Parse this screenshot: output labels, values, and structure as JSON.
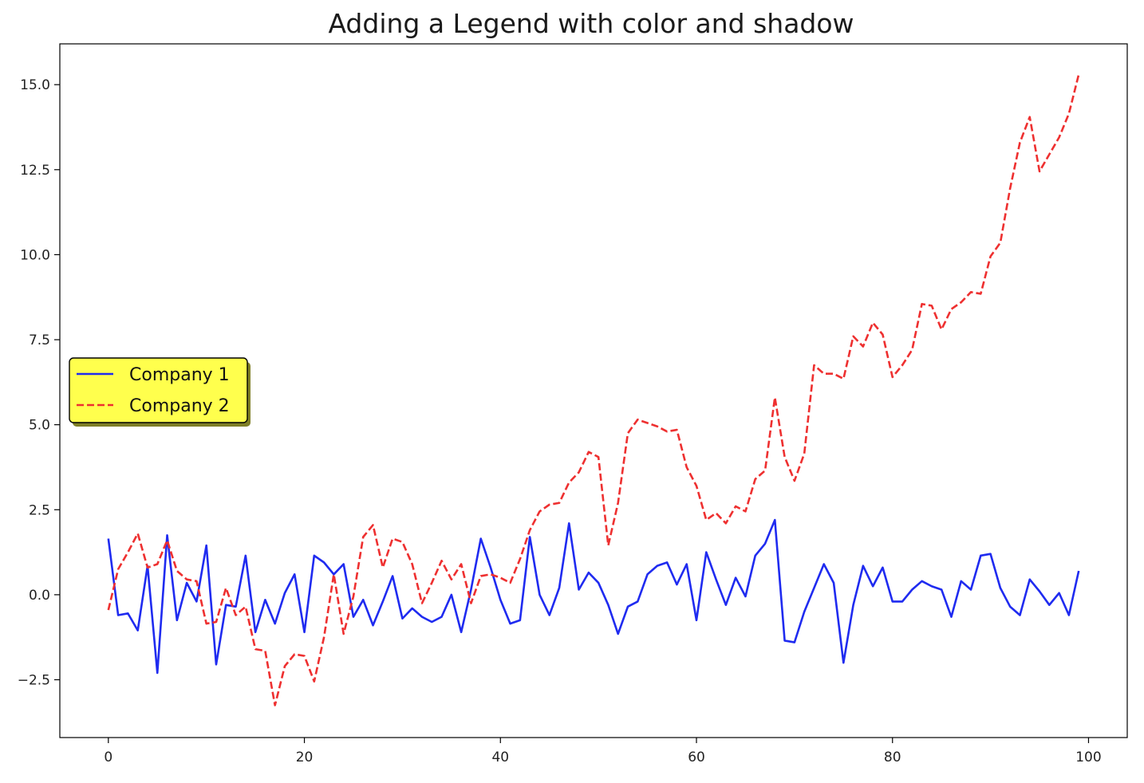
{
  "chart_data": {
    "type": "line",
    "title": "Adding a Legend with color and shadow",
    "xlabel": "",
    "ylabel": "",
    "xlim": [
      -4.95,
      103.95
    ],
    "ylim": [
      -4.2,
      16.2
    ],
    "xticks": [
      0,
      20,
      40,
      60,
      80,
      100
    ],
    "xtick_labels": [
      "0",
      "20",
      "40",
      "60",
      "80",
      "100"
    ],
    "yticks": [
      -2.5,
      0.0,
      2.5,
      5.0,
      7.5,
      10.0,
      12.5,
      15.0
    ],
    "ytick_labels": [
      "−2.5",
      "0.0",
      "2.5",
      "5.0",
      "7.5",
      "10.0",
      "12.5",
      "15.0"
    ],
    "grid": false,
    "legend": {
      "placement": "center-left",
      "facecolor": "#ffff4d",
      "edgecolor": "#000000",
      "shadow": true
    },
    "x": [
      0,
      1,
      2,
      3,
      4,
      5,
      6,
      7,
      8,
      9,
      10,
      11,
      12,
      13,
      14,
      15,
      16,
      17,
      18,
      19,
      20,
      21,
      22,
      23,
      24,
      25,
      26,
      27,
      28,
      29,
      30,
      31,
      32,
      33,
      34,
      35,
      36,
      37,
      38,
      39,
      40,
      41,
      42,
      43,
      44,
      45,
      46,
      47,
      48,
      49,
      50,
      51,
      52,
      53,
      54,
      55,
      56,
      57,
      58,
      59,
      60,
      61,
      62,
      63,
      64,
      65,
      66,
      67,
      68,
      69,
      70,
      71,
      72,
      73,
      74,
      75,
      76,
      77,
      78,
      79,
      80,
      81,
      82,
      83,
      84,
      85,
      86,
      87,
      88,
      89,
      90,
      91,
      92,
      93,
      94,
      95,
      96,
      97,
      98,
      99
    ],
    "series": [
      {
        "name": "Company 1",
        "color": "#1f2bf0",
        "linestyle": "solid",
        "values": [
          1.65,
          -0.6,
          -0.55,
          -1.05,
          0.85,
          -2.3,
          1.75,
          -0.75,
          0.35,
          -0.2,
          1.45,
          -2.05,
          -0.3,
          -0.35,
          1.15,
          -1.1,
          -0.15,
          -0.85,
          0.05,
          0.6,
          -1.1,
          1.15,
          0.95,
          0.6,
          0.9,
          -0.65,
          -0.15,
          -0.9,
          -0.2,
          0.55,
          -0.7,
          -0.4,
          -0.65,
          -0.8,
          -0.65,
          0.0,
          -1.1,
          0.15,
          1.65,
          0.8,
          -0.15,
          -0.85,
          -0.75,
          1.7,
          0.0,
          -0.6,
          0.2,
          2.1,
          0.15,
          0.65,
          0.35,
          -0.3,
          -1.15,
          -0.35,
          -0.2,
          0.6,
          0.85,
          0.95,
          0.3,
          0.9,
          -0.75,
          1.25,
          0.45,
          -0.3,
          0.5,
          -0.05,
          1.15,
          1.5,
          2.2,
          -1.35,
          -1.4,
          -0.5,
          0.2,
          0.9,
          0.35,
          -2.0,
          -0.3,
          0.85,
          0.25,
          0.8,
          -0.2,
          -0.2,
          0.15,
          0.4,
          0.25,
          0.15,
          -0.65,
          0.4,
          0.15,
          1.15,
          1.2,
          0.2,
          -0.35,
          -0.6,
          0.45,
          0.1,
          -0.3,
          0.05,
          -0.6,
          0.7
        ]
      },
      {
        "name": "Company 2",
        "color": "#ee3030",
        "linestyle": "dashed",
        "values": [
          -0.45,
          0.75,
          1.25,
          1.8,
          0.8,
          0.9,
          1.6,
          0.7,
          0.45,
          0.4,
          -0.85,
          -0.8,
          0.2,
          -0.6,
          -0.35,
          -1.6,
          -1.65,
          -3.25,
          -2.1,
          -1.75,
          -1.8,
          -2.55,
          -1.25,
          0.6,
          -1.15,
          -0.05,
          1.7,
          2.05,
          0.8,
          1.65,
          1.55,
          0.9,
          -0.25,
          0.35,
          1.0,
          0.45,
          0.9,
          -0.25,
          0.55,
          0.6,
          0.5,
          0.35,
          1.05,
          1.9,
          2.45,
          2.65,
          2.7,
          3.3,
          3.6,
          4.2,
          4.05,
          1.45,
          2.7,
          4.75,
          5.15,
          5.05,
          4.95,
          4.8,
          4.85,
          3.75,
          3.2,
          2.2,
          2.4,
          2.1,
          2.6,
          2.45,
          3.4,
          3.65,
          5.8,
          4.05,
          3.35,
          4.15,
          6.75,
          6.5,
          6.5,
          6.35,
          7.6,
          7.3,
          8.0,
          7.65,
          6.4,
          6.75,
          7.2,
          8.55,
          8.5,
          7.8,
          8.4,
          8.6,
          8.9,
          8.85,
          9.95,
          10.35,
          11.95,
          13.3,
          14.05,
          12.45,
          12.95,
          13.45,
          14.15,
          15.3
        ]
      }
    ]
  }
}
